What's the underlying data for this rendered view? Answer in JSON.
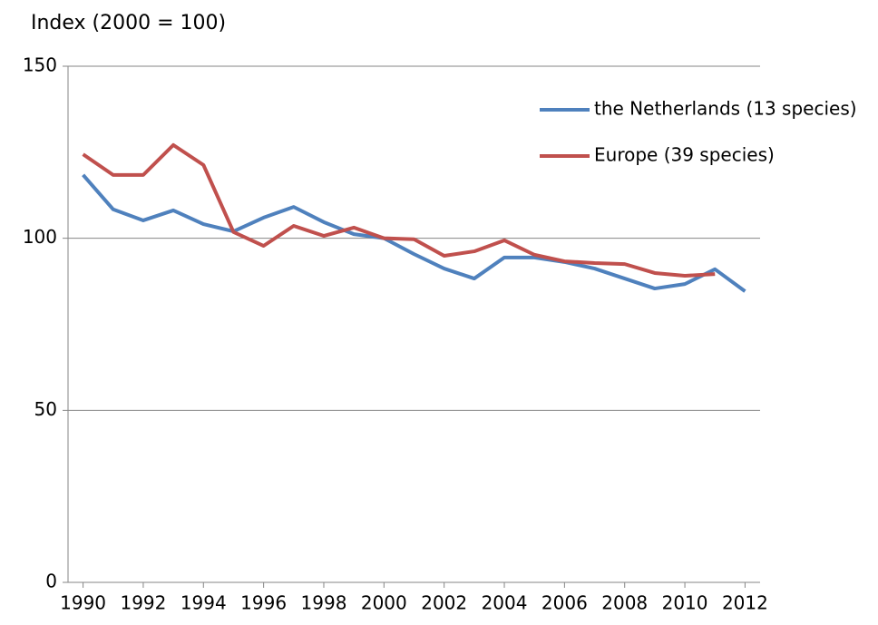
{
  "chart_data": {
    "type": "line",
    "y_axis_label": "Index (2000 = 100)",
    "x": [
      1990,
      1991,
      1992,
      1993,
      1994,
      1995,
      1996,
      1997,
      1998,
      1999,
      2000,
      2001,
      2002,
      2003,
      2004,
      2005,
      2006,
      2007,
      2008,
      2009,
      2010,
      2011,
      2012
    ],
    "series": [
      {
        "name": "the Netherlands (13 species)",
        "color": "#4f81bd",
        "values": [
          118.4,
          108.4,
          105.2,
          108.1,
          104.1,
          102,
          106,
          109.1,
          104.7,
          101.2,
          100,
          95.4,
          91.2,
          88.3,
          94.4,
          94.4,
          93.1,
          91.2,
          88.3,
          85.4,
          86.7,
          91,
          84.6
        ]
      },
      {
        "name": "Europe (39 species)",
        "color": "#c0504d",
        "values": [
          124.4,
          118.4,
          118.4,
          127.1,
          121.3,
          101.8,
          97.8,
          103.6,
          100.7,
          103.1,
          100,
          99.7,
          94.9,
          96.2,
          99.4,
          95.2,
          93.3,
          92.8,
          92.5,
          89.9,
          89.1,
          89.6,
          null
        ]
      }
    ],
    "xlim": [
      1989.5,
      2012.5
    ],
    "xticks": [
      1990,
      1992,
      1994,
      1996,
      1998,
      2000,
      2002,
      2004,
      2006,
      2008,
      2010,
      2012
    ],
    "ylim": [
      0,
      150
    ],
    "yticks": [
      0,
      50,
      100,
      150
    ],
    "grid": true,
    "legend": "upper right"
  }
}
